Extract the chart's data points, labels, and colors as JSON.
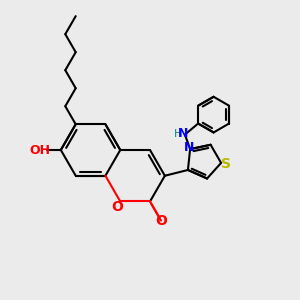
{
  "bg_color": "#ebebeb",
  "bond_color": "#000000",
  "bond_width": 1.5,
  "atom_colors": {
    "O": "#ff0000",
    "N": "#0000ff",
    "S": "#b8b800",
    "N_teal": "#008888"
  },
  "font_size": 9
}
